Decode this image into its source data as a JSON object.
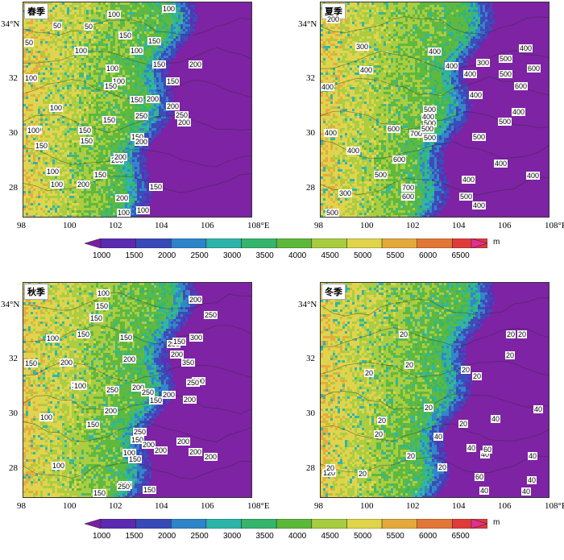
{
  "panels": [
    {
      "id": "spring",
      "title": "春季",
      "labels": [
        [
          "100",
          104,
          10
        ],
        [
          "100",
          172,
          3
        ],
        [
          "50",
          36,
          24
        ],
        [
          "50",
          75,
          25
        ],
        [
          "150",
          118,
          36
        ],
        [
          "50",
          1,
          45
        ],
        [
          "100",
          63,
          55
        ],
        [
          "100",
          132,
          55
        ],
        [
          "150",
          154,
          43
        ],
        [
          "150",
          160,
          72
        ],
        [
          "100",
          1,
          89
        ],
        [
          "100",
          102,
          77
        ],
        [
          "200",
          205,
          72
        ],
        [
          "200",
          152,
          115
        ],
        [
          "100",
          110,
          93
        ],
        [
          "150",
          132,
          116
        ],
        [
          "150",
          100,
          99
        ],
        [
          "150",
          177,
          93
        ],
        [
          "100",
          32,
          126
        ],
        [
          "200",
          177,
          124
        ],
        [
          "250",
          188,
          135
        ],
        [
          "250",
          138,
          136
        ],
        [
          "150",
          68,
          154
        ],
        [
          "150",
          98,
          141
        ],
        [
          "200",
          191,
          144
        ],
        [
          "100",
          6,
          153
        ],
        [
          "100",
          4,
          154
        ],
        [
          "150",
          70,
          167
        ],
        [
          "150",
          133,
          162
        ],
        [
          "200",
          138,
          168
        ],
        [
          "150",
          14,
          173
        ],
        [
          "200",
          108,
          191
        ],
        [
          "200",
          112,
          187
        ],
        [
          "150",
          87,
          209
        ],
        [
          "100",
          33,
          221
        ],
        [
          "200",
          66,
          221
        ],
        [
          "150",
          156,
          224
        ],
        [
          "200",
          114,
          238
        ],
        [
          "100",
          140,
          253
        ],
        [
          "100",
          116,
          263
        ],
        [
          "100",
          28,
          205
        ]
      ]
    },
    {
      "id": "summer",
      "title": "夏季",
      "labels": [
        [
          "200",
          7,
          16
        ],
        [
          "300",
          43,
          50
        ],
        [
          "400",
          133,
          56
        ],
        [
          "300",
          193,
          70
        ],
        [
          "500",
          221,
          65
        ],
        [
          "400",
          246,
          52
        ],
        [
          "400",
          48,
          79
        ],
        [
          "500",
          221,
          84
        ],
        [
          "600",
          256,
          77
        ],
        [
          "400",
          154,
          74
        ],
        [
          "400",
          177,
          84
        ],
        [
          "400",
          0,
          100
        ],
        [
          "400",
          184,
          110
        ],
        [
          "600",
          240,
          99
        ],
        [
          "500",
          127,
          128
        ],
        [
          "400",
          125,
          137
        ],
        [
          "500",
          127,
          145
        ],
        [
          "500",
          220,
          143
        ],
        [
          "400",
          237,
          131
        ],
        [
          "600",
          82,
          152
        ],
        [
          "700",
          110,
          158
        ],
        [
          "500",
          124,
          152
        ],
        [
          "400",
          4,
          157
        ],
        [
          "500",
          188,
          162
        ],
        [
          "500",
          127,
          163
        ],
        [
          "400",
          32,
          179
        ],
        [
          "600",
          89,
          190
        ],
        [
          "400",
          215,
          195
        ],
        [
          "400",
          255,
          210
        ],
        [
          "500",
          66,
          209
        ],
        [
          "700",
          100,
          225
        ],
        [
          "600",
          100,
          236
        ],
        [
          "400",
          175,
          215
        ],
        [
          "300",
          22,
          232
        ],
        [
          "500",
          172,
          236
        ],
        [
          "400",
          188,
          247
        ],
        [
          "500",
          6,
          258
        ]
      ]
    },
    {
      "id": "autumn",
      "title": "秋季",
      "labels": [
        [
          "100",
          91,
          8
        ],
        [
          "200",
          205,
          16
        ],
        [
          "150",
          89,
          24
        ],
        [
          "250",
          224,
          35
        ],
        [
          "150",
          82,
          39
        ],
        [
          "100",
          28,
          64
        ],
        [
          "150",
          66,
          59
        ],
        [
          "250",
          178,
          71
        ],
        [
          "300",
          206,
          63
        ],
        [
          "150",
          119,
          63
        ],
        [
          "150",
          185,
          68
        ],
        [
          "200",
          123,
          90
        ],
        [
          "200",
          182,
          84
        ],
        [
          "350",
          196,
          94
        ],
        [
          "150",
          1,
          95
        ],
        [
          "200",
          45,
          94
        ],
        [
          "300",
          209,
          117
        ],
        [
          "150",
          59,
          122
        ],
        [
          "100",
          62,
          123
        ],
        [
          "200",
          134,
          125
        ],
        [
          "250",
          146,
          131
        ],
        [
          "150",
          156,
          141
        ],
        [
          "250",
          202,
          119
        ],
        [
          "200",
          172,
          134
        ],
        [
          "200",
          198,
          140
        ],
        [
          "200",
          100,
          154
        ],
        [
          "100",
          20,
          162
        ],
        [
          "250",
          102,
          128
        ],
        [
          "150",
          78,
          171
        ],
        [
          "250",
          136,
          180
        ],
        [
          "150",
          133,
          190
        ],
        [
          "200",
          147,
          196
        ],
        [
          "200",
          162,
          203
        ],
        [
          "200",
          190,
          192
        ],
        [
          "100",
          123,
          206
        ],
        [
          "150",
          130,
          214
        ],
        [
          "200",
          205,
          205
        ],
        [
          "200",
          224,
          211
        ],
        [
          "100",
          35,
          222
        ],
        [
          "200",
          118,
          246
        ],
        [
          "150",
          148,
          252
        ],
        [
          "250",
          116,
          248
        ],
        [
          "150",
          86,
          257
        ]
      ]
    },
    {
      "id": "winter",
      "title": "冬季",
      "labels": [
        [
          "20",
          97,
          59
        ],
        [
          "20",
          230,
          59
        ],
        [
          "20",
          244,
          59
        ],
        [
          "20",
          229,
          85
        ],
        [
          "20",
          104,
          97
        ],
        [
          "20",
          174,
          103
        ],
        [
          "20",
          54,
          107
        ],
        [
          "20",
          188,
          111
        ],
        [
          "20",
          128,
          150
        ],
        [
          "40",
          264,
          152
        ],
        [
          "20",
          70,
          166
        ],
        [
          "40",
          140,
          186
        ],
        [
          "20",
          171,
          170
        ],
        [
          "40",
          211,
          164
        ],
        [
          "40",
          181,
          200
        ],
        [
          "40",
          198,
          208
        ],
        [
          "60",
          201,
          202
        ],
        [
          "40",
          257,
          210
        ],
        [
          "20",
          66,
          183
        ],
        [
          "20",
          106,
          210
        ],
        [
          "20",
          145,
          224
        ],
        [
          "60",
          191,
          236
        ],
        [
          "40",
          256,
          240
        ],
        [
          "40",
          197,
          253
        ],
        [
          "40",
          249,
          254
        ],
        [
          "20",
          46,
          232
        ],
        [
          "120",
          2,
          231
        ],
        [
          "20",
          6,
          225
        ]
      ]
    }
  ],
  "axes": {
    "x_ticks": [
      "98",
      "100",
      "102",
      "104",
      "106",
      "108°E"
    ],
    "y_ticks": [
      "34°N",
      "32",
      "30",
      "28"
    ]
  },
  "colorbar": {
    "labels": [
      "1000",
      "1500",
      "2000",
      "2500",
      "3000",
      "3500",
      "4000",
      "4500",
      "5000",
      "5500",
      "6000",
      "6500"
    ],
    "unit": "m",
    "colors": [
      "#7b1fa2",
      "#5a2bb0",
      "#3849b8",
      "#2e84c9",
      "#2bb5a9",
      "#34b56b",
      "#5cb83a",
      "#a8cc3f",
      "#dfd44a",
      "#e3aa3b",
      "#e27636",
      "#df3b3b",
      "#e42f8f"
    ]
  }
}
